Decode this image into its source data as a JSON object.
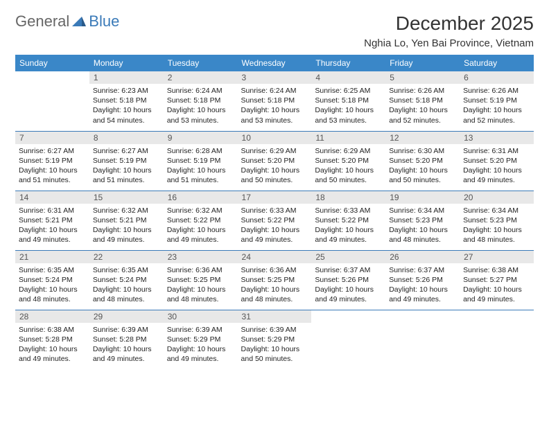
{
  "logo": {
    "part1": "General",
    "part2": "Blue"
  },
  "title": "December 2025",
  "location": "Nghia Lo, Yen Bai Province, Vietnam",
  "colors": {
    "header_bg": "#3a87c8",
    "header_text": "#ffffff",
    "daynum_bg": "#e8e8e8",
    "border": "#3a7ab8",
    "logo_blue": "#3a7ab8"
  },
  "weekdays": [
    "Sunday",
    "Monday",
    "Tuesday",
    "Wednesday",
    "Thursday",
    "Friday",
    "Saturday"
  ],
  "weeks": [
    [
      null,
      {
        "n": "1",
        "sr": "6:23 AM",
        "ss": "5:18 PM",
        "dl": "10 hours and 54 minutes."
      },
      {
        "n": "2",
        "sr": "6:24 AM",
        "ss": "5:18 PM",
        "dl": "10 hours and 53 minutes."
      },
      {
        "n": "3",
        "sr": "6:24 AM",
        "ss": "5:18 PM",
        "dl": "10 hours and 53 minutes."
      },
      {
        "n": "4",
        "sr": "6:25 AM",
        "ss": "5:18 PM",
        "dl": "10 hours and 53 minutes."
      },
      {
        "n": "5",
        "sr": "6:26 AM",
        "ss": "5:18 PM",
        "dl": "10 hours and 52 minutes."
      },
      {
        "n": "6",
        "sr": "6:26 AM",
        "ss": "5:19 PM",
        "dl": "10 hours and 52 minutes."
      }
    ],
    [
      {
        "n": "7",
        "sr": "6:27 AM",
        "ss": "5:19 PM",
        "dl": "10 hours and 51 minutes."
      },
      {
        "n": "8",
        "sr": "6:27 AM",
        "ss": "5:19 PM",
        "dl": "10 hours and 51 minutes."
      },
      {
        "n": "9",
        "sr": "6:28 AM",
        "ss": "5:19 PM",
        "dl": "10 hours and 51 minutes."
      },
      {
        "n": "10",
        "sr": "6:29 AM",
        "ss": "5:20 PM",
        "dl": "10 hours and 50 minutes."
      },
      {
        "n": "11",
        "sr": "6:29 AM",
        "ss": "5:20 PM",
        "dl": "10 hours and 50 minutes."
      },
      {
        "n": "12",
        "sr": "6:30 AM",
        "ss": "5:20 PM",
        "dl": "10 hours and 50 minutes."
      },
      {
        "n": "13",
        "sr": "6:31 AM",
        "ss": "5:20 PM",
        "dl": "10 hours and 49 minutes."
      }
    ],
    [
      {
        "n": "14",
        "sr": "6:31 AM",
        "ss": "5:21 PM",
        "dl": "10 hours and 49 minutes."
      },
      {
        "n": "15",
        "sr": "6:32 AM",
        "ss": "5:21 PM",
        "dl": "10 hours and 49 minutes."
      },
      {
        "n": "16",
        "sr": "6:32 AM",
        "ss": "5:22 PM",
        "dl": "10 hours and 49 minutes."
      },
      {
        "n": "17",
        "sr": "6:33 AM",
        "ss": "5:22 PM",
        "dl": "10 hours and 49 minutes."
      },
      {
        "n": "18",
        "sr": "6:33 AM",
        "ss": "5:22 PM",
        "dl": "10 hours and 49 minutes."
      },
      {
        "n": "19",
        "sr": "6:34 AM",
        "ss": "5:23 PM",
        "dl": "10 hours and 48 minutes."
      },
      {
        "n": "20",
        "sr": "6:34 AM",
        "ss": "5:23 PM",
        "dl": "10 hours and 48 minutes."
      }
    ],
    [
      {
        "n": "21",
        "sr": "6:35 AM",
        "ss": "5:24 PM",
        "dl": "10 hours and 48 minutes."
      },
      {
        "n": "22",
        "sr": "6:35 AM",
        "ss": "5:24 PM",
        "dl": "10 hours and 48 minutes."
      },
      {
        "n": "23",
        "sr": "6:36 AM",
        "ss": "5:25 PM",
        "dl": "10 hours and 48 minutes."
      },
      {
        "n": "24",
        "sr": "6:36 AM",
        "ss": "5:25 PM",
        "dl": "10 hours and 48 minutes."
      },
      {
        "n": "25",
        "sr": "6:37 AM",
        "ss": "5:26 PM",
        "dl": "10 hours and 49 minutes."
      },
      {
        "n": "26",
        "sr": "6:37 AM",
        "ss": "5:26 PM",
        "dl": "10 hours and 49 minutes."
      },
      {
        "n": "27",
        "sr": "6:38 AM",
        "ss": "5:27 PM",
        "dl": "10 hours and 49 minutes."
      }
    ],
    [
      {
        "n": "28",
        "sr": "6:38 AM",
        "ss": "5:28 PM",
        "dl": "10 hours and 49 minutes."
      },
      {
        "n": "29",
        "sr": "6:39 AM",
        "ss": "5:28 PM",
        "dl": "10 hours and 49 minutes."
      },
      {
        "n": "30",
        "sr": "6:39 AM",
        "ss": "5:29 PM",
        "dl": "10 hours and 49 minutes."
      },
      {
        "n": "31",
        "sr": "6:39 AM",
        "ss": "5:29 PM",
        "dl": "10 hours and 50 minutes."
      },
      null,
      null,
      null
    ]
  ],
  "labels": {
    "sunrise": "Sunrise:",
    "sunset": "Sunset:",
    "daylight": "Daylight:"
  }
}
